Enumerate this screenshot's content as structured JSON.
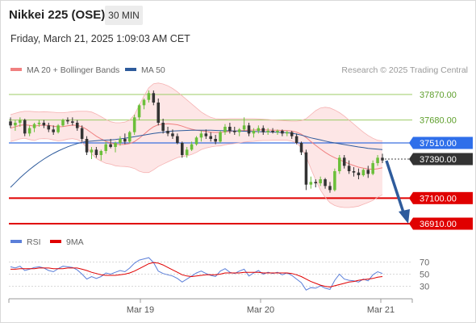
{
  "header": {
    "title": "Nikkei 225 (OSE)",
    "interval": "30 MIN",
    "datetime": "Friday, March 21, 2025 1:09:03 AM CET"
  },
  "legend": {
    "ma20": {
      "label": "MA 20 + Bollinger Bands",
      "color": "#f08080"
    },
    "ma50": {
      "label": "MA 50",
      "color": "#2e5b9c"
    },
    "credit": "Research © 2025 Trading Central"
  },
  "rsi_legend": {
    "rsi": {
      "label": "RSI",
      "color": "#5b7fd9"
    },
    "ma9": {
      "label": "9MA",
      "color": "#e00000"
    }
  },
  "chart_data": {
    "type": "candlestick",
    "ylim": [
      36850,
      37990
    ],
    "xlabels": [
      "Mar 19",
      "Mar 20",
      "Mar 21"
    ],
    "candles": [
      [
        37670,
        37700,
        37620,
        37640
      ],
      [
        37640,
        37680,
        37600,
        37660
      ],
      [
        37660,
        37700,
        37630,
        37680
      ],
      [
        37680,
        37690,
        37560,
        37580
      ],
      [
        37580,
        37640,
        37560,
        37620
      ],
      [
        37620,
        37660,
        37590,
        37650
      ],
      [
        37650,
        37680,
        37630,
        37660
      ],
      [
        37660,
        37680,
        37620,
        37640
      ],
      [
        37640,
        37660,
        37590,
        37610
      ],
      [
        37610,
        37640,
        37570,
        37590
      ],
      [
        37590,
        37650,
        37580,
        37640
      ],
      [
        37640,
        37690,
        37630,
        37680
      ],
      [
        37680,
        37700,
        37650,
        37670
      ],
      [
        37670,
        37700,
        37640,
        37660
      ],
      [
        37660,
        37680,
        37600,
        37620
      ],
      [
        37620,
        37640,
        37520,
        37540
      ],
      [
        37540,
        37560,
        37420,
        37440
      ],
      [
        37440,
        37480,
        37390,
        37460
      ],
      [
        37460,
        37480,
        37400,
        37420
      ],
      [
        37420,
        37460,
        37380,
        37450
      ],
      [
        37450,
        37520,
        37430,
        37500
      ],
      [
        37500,
        37540,
        37470,
        37480
      ],
      [
        37480,
        37520,
        37440,
        37510
      ],
      [
        37510,
        37560,
        37490,
        37540
      ],
      [
        37540,
        37580,
        37500,
        37520
      ],
      [
        37520,
        37600,
        37510,
        37590
      ],
      [
        37590,
        37720,
        37570,
        37700
      ],
      [
        37700,
        37800,
        37680,
        37790
      ],
      [
        37790,
        37840,
        37760,
        37830
      ],
      [
        37830,
        37900,
        37810,
        37880
      ],
      [
        37880,
        37900,
        37790,
        37810
      ],
      [
        37810,
        37840,
        37640,
        37660
      ],
      [
        37660,
        37690,
        37580,
        37600
      ],
      [
        37600,
        37630,
        37560,
        37580
      ],
      [
        37580,
        37610,
        37540,
        37560
      ],
      [
        37560,
        37580,
        37500,
        37510
      ],
      [
        37510,
        37520,
        37400,
        37420
      ],
      [
        37420,
        37480,
        37400,
        37460
      ],
      [
        37460,
        37520,
        37450,
        37500
      ],
      [
        37500,
        37560,
        37490,
        37550
      ],
      [
        37550,
        37600,
        37520,
        37580
      ],
      [
        37580,
        37610,
        37540,
        37560
      ],
      [
        37560,
        37590,
        37520,
        37540
      ],
      [
        37540,
        37570,
        37500,
        37520
      ],
      [
        37520,
        37600,
        37510,
        37590
      ],
      [
        37590,
        37650,
        37570,
        37630
      ],
      [
        37630,
        37660,
        37580,
        37600
      ],
      [
        37600,
        37630,
        37570,
        37590
      ],
      [
        37590,
        37620,
        37560,
        37610
      ],
      [
        37610,
        37700,
        37600,
        37640
      ],
      [
        37640,
        37660,
        37560,
        37580
      ],
      [
        37580,
        37620,
        37550,
        37600
      ],
      [
        37600,
        37640,
        37580,
        37620
      ],
      [
        37620,
        37640,
        37570,
        37590
      ],
      [
        37590,
        37620,
        37570,
        37600
      ],
      [
        37600,
        37620,
        37580,
        37590
      ],
      [
        37590,
        37610,
        37570,
        37600
      ],
      [
        37600,
        37610,
        37560,
        37580
      ],
      [
        37580,
        37600,
        37560,
        37590
      ],
      [
        37590,
        37600,
        37540,
        37560
      ],
      [
        37560,
        37580,
        37500,
        37510
      ],
      [
        37510,
        37520,
        37420,
        37440
      ],
      [
        37440,
        37460,
        37160,
        37200
      ],
      [
        37200,
        37260,
        37170,
        37220
      ],
      [
        37220,
        37240,
        37180,
        37210
      ],
      [
        37210,
        37260,
        37190,
        37240
      ],
      [
        37240,
        37250,
        37170,
        37190
      ],
      [
        37190,
        37220,
        37140,
        37160
      ],
      [
        37160,
        37320,
        37150,
        37300
      ],
      [
        37300,
        37420,
        37280,
        37400
      ],
      [
        37400,
        37420,
        37320,
        37340
      ],
      [
        37340,
        37380,
        37280,
        37300
      ],
      [
        37300,
        37330,
        37260,
        37290
      ],
      [
        37290,
        37320,
        37240,
        37270
      ],
      [
        37270,
        37320,
        37260,
        37310
      ],
      [
        37310,
        37340,
        37250,
        37280
      ],
      [
        37280,
        37380,
        37270,
        37360
      ],
      [
        37360,
        37420,
        37340,
        37400
      ],
      [
        37400,
        37430,
        37360,
        37380
      ]
    ],
    "ma20": [
      37620,
      37630,
      37640,
      37645,
      37640,
      37635,
      37640,
      37642,
      37640,
      37635,
      37630,
      37632,
      37638,
      37642,
      37640,
      37630,
      37610,
      37585,
      37560,
      37540,
      37522,
      37510,
      37500,
      37498,
      37500,
      37505,
      37520,
      37545,
      37575,
      37605,
      37630,
      37645,
      37650,
      37652,
      37650,
      37645,
      37635,
      37622,
      37612,
      37605,
      37600,
      37595,
      37590,
      37588,
      37588,
      37592,
      37596,
      37598,
      37600,
      37603,
      37605,
      37606,
      37607,
      37607,
      37606,
      37605,
      37604,
      37603,
      37602,
      37598,
      37590,
      37575,
      37550,
      37520,
      37492,
      37465,
      37440,
      37418,
      37400,
      37385,
      37370,
      37355,
      37342,
      37330,
      37322,
      37316,
      37314,
      37318,
      37325
    ],
    "bb_upper": [
      37720,
      37730,
      37740,
      37745,
      37745,
      37742,
      37740,
      37742,
      37740,
      37738,
      37735,
      37735,
      37738,
      37742,
      37745,
      37745,
      37745,
      37740,
      37725,
      37705,
      37685,
      37668,
      37660,
      37660,
      37665,
      37680,
      37720,
      37790,
      37860,
      37920,
      37950,
      37955,
      37948,
      37935,
      37915,
      37890,
      37860,
      37830,
      37800,
      37770,
      37740,
      37718,
      37700,
      37690,
      37688,
      37688,
      37690,
      37690,
      37690,
      37690,
      37690,
      37690,
      37688,
      37686,
      37684,
      37680,
      37678,
      37676,
      37674,
      37672,
      37672,
      37676,
      37690,
      37720,
      37750,
      37770,
      37775,
      37770,
      37755,
      37735,
      37710,
      37680,
      37650,
      37620,
      37590,
      37565,
      37545,
      37530,
      37525
    ],
    "bb_lower": [
      37520,
      37530,
      37540,
      37545,
      37535,
      37528,
      37540,
      37542,
      37540,
      37532,
      37525,
      37529,
      37538,
      37542,
      37535,
      37515,
      37475,
      37430,
      37395,
      37375,
      37359,
      37352,
      37340,
      37336,
      37335,
      37330,
      37320,
      37300,
      37290,
      37290,
      37310,
      37335,
      37352,
      37369,
      37385,
      37400,
      37410,
      37414,
      37424,
      37440,
      37460,
      37472,
      37480,
      37486,
      37488,
      37496,
      37502,
      37506,
      37510,
      37516,
      37520,
      37522,
      37526,
      37528,
      37528,
      37530,
      37530,
      37530,
      37530,
      37524,
      37508,
      37474,
      37410,
      37320,
      37234,
      37160,
      37105,
      37066,
      37045,
      37035,
      37030,
      37030,
      37034,
      37040,
      37054,
      37067,
      37083,
      37106,
      37125
    ],
    "ma50": [
      37180,
      37215,
      37250,
      37282,
      37312,
      37340,
      37366,
      37390,
      37412,
      37432,
      37450,
      37466,
      37481,
      37494,
      37505,
      37514,
      37520,
      37524,
      37527,
      37529,
      37531,
      37533,
      37536,
      37540,
      37545,
      37550,
      37556,
      37562,
      37568,
      37574,
      37580,
      37585,
      37590,
      37594,
      37598,
      37600,
      37602,
      37603,
      37604,
      37605,
      37605,
      37605,
      37604,
      37603,
      37602,
      37601,
      37600,
      37599,
      37598,
      37597,
      37596,
      37595,
      37594,
      37593,
      37592,
      37591,
      37590,
      37588,
      37586,
      37582,
      37576,
      37568,
      37558,
      37548,
      37540,
      37532,
      37524,
      37516,
      37510,
      37504,
      37498,
      37492,
      37486,
      37480,
      37475,
      37470,
      37466,
      37463,
      37460
    ],
    "levels": [
      {
        "value": 37870,
        "label": "37870.00",
        "kind": "resistance"
      },
      {
        "value": 37680,
        "label": "37680.00",
        "kind": "resistance"
      },
      {
        "value": 37510,
        "label": "37510.00",
        "kind": "pivot"
      },
      {
        "value": 37390,
        "label": "37390.00",
        "kind": "last"
      },
      {
        "value": 37100,
        "label": "37100.00",
        "kind": "support"
      },
      {
        "value": 36910,
        "label": "36910.00",
        "kind": "support"
      }
    ],
    "arrow": {
      "from_value": 37390,
      "to_value": 36910
    },
    "rsi": {
      "ylim": [
        15,
        85
      ],
      "ticks": [
        70,
        50,
        30
      ],
      "values": [
        62,
        60,
        63,
        56,
        58,
        61,
        62,
        60,
        56,
        54,
        59,
        63,
        62,
        61,
        57,
        50,
        42,
        46,
        43,
        46,
        52,
        50,
        53,
        56,
        54,
        60,
        68,
        73,
        75,
        77,
        69,
        55,
        51,
        49,
        47,
        43,
        37,
        42,
        47,
        52,
        55,
        51,
        48,
        46,
        55,
        59,
        53,
        51,
        55,
        58,
        47,
        52,
        56,
        50,
        53,
        51,
        53,
        49,
        52,
        48,
        42,
        36,
        24,
        28,
        27,
        31,
        27,
        25,
        40,
        50,
        42,
        40,
        39,
        37,
        42,
        39,
        49,
        54,
        51
      ],
      "ma9": [
        58,
        58,
        59,
        59,
        59,
        59,
        60,
        60,
        60,
        59,
        59,
        59,
        60,
        60,
        60,
        58,
        56,
        53,
        51,
        49,
        48,
        48,
        48,
        49,
        50,
        52,
        55,
        59,
        63,
        67,
        69,
        68,
        65,
        61,
        57,
        53,
        49,
        47,
        46,
        47,
        48,
        49,
        49,
        49,
        50,
        52,
        52,
        52,
        52,
        53,
        53,
        53,
        53,
        52,
        52,
        52,
        52,
        52,
        52,
        51,
        49,
        46,
        42,
        38,
        35,
        32,
        30,
        29,
        31,
        33,
        35,
        37,
        38,
        40,
        41,
        42,
        43,
        45,
        46
      ]
    }
  }
}
